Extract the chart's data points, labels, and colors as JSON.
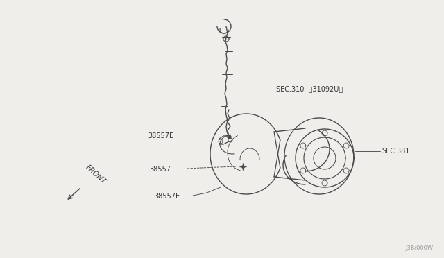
{
  "bg_color": "#f0eeeb",
  "line_color": "#4a4a4a",
  "text_color": "#333333",
  "watermark": "J38/000W",
  "labels": {
    "sec310": "SEC.310  〱31092U〲",
    "sec381": "SEC.381",
    "part38557E_top": "38557E",
    "part38557": "38557",
    "part38557E_bot": "38557E",
    "front": "FRONT"
  }
}
